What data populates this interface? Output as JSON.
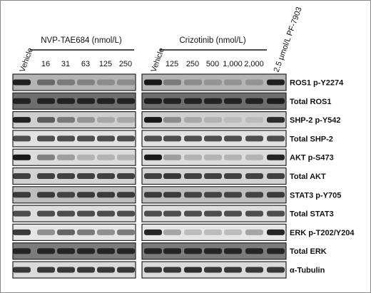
{
  "left_group": {
    "title": "NVP-TAE684 (nmol/L)",
    "lanes": [
      "Vehicle",
      "16",
      "31",
      "63",
      "125",
      "250"
    ]
  },
  "right_group": {
    "title": "Crizotinib (nmol/L)",
    "lanes": [
      "Vehicle",
      "125",
      "250",
      "500",
      "1,000",
      "2,000",
      "2.5 μmol/L PF-7903"
    ]
  },
  "rows": [
    "ROS1 p-Y2274",
    "Total ROS1",
    "SHP-2 p-Y542",
    "Total SHP-2",
    "AKT p-S473",
    "Total AKT",
    "STAT3 p-Y705",
    "Total STAT3",
    "ERK p-T202/Y204",
    "Total ERK",
    "α-Tubulin"
  ]
}
